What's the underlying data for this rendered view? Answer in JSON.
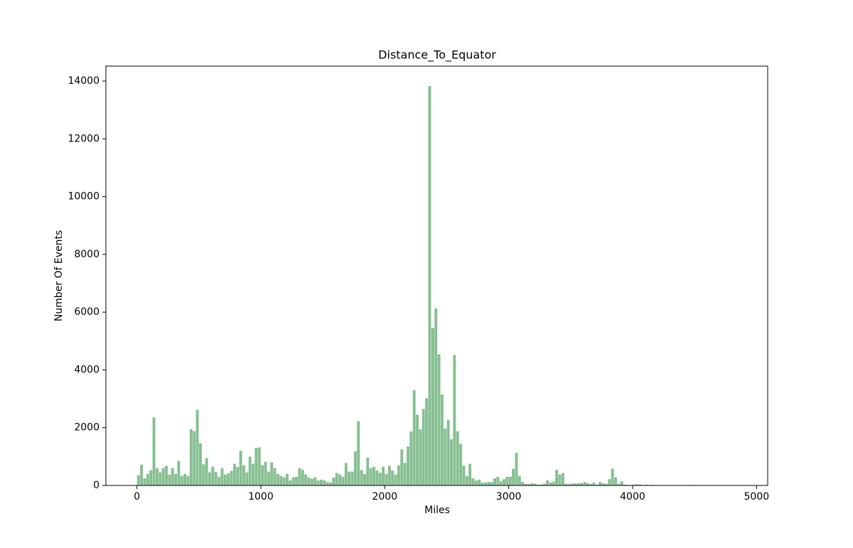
{
  "chart_data": {
    "type": "histogram",
    "title": "Distance_To_Equator",
    "x_label": "Miles",
    "y_label": "Number Of Events",
    "color": "#86bf91",
    "bins": [
      0,
      25,
      50,
      75,
      100,
      125,
      150,
      175,
      200,
      225,
      250,
      275,
      300,
      325,
      350,
      375,
      400,
      425,
      450,
      475,
      500,
      525,
      550,
      575,
      600,
      625,
      650,
      675,
      700,
      725,
      750,
      775,
      800,
      825,
      850,
      875,
      900,
      925,
      950,
      975,
      1000,
      1025,
      1050,
      1075,
      1100,
      1125,
      1150,
      1175,
      1200,
      1225,
      1250,
      1275,
      1300,
      1325,
      1350,
      1375,
      1400,
      1425,
      1450,
      1475,
      1500,
      1525,
      1550,
      1575,
      1600,
      1625,
      1650,
      1675,
      1700,
      1725,
      1750,
      1775,
      1800,
      1825,
      1850,
      1875,
      1900,
      1925,
      1950,
      1975,
      2000,
      2025,
      2050,
      2075,
      2100,
      2125,
      2150,
      2175,
      2200,
      2225,
      2250,
      2275,
      2300,
      2325,
      2350,
      2375,
      2400,
      2425,
      2450,
      2475,
      2500,
      2525,
      2550,
      2575,
      2600,
      2625,
      2650,
      2675,
      2700,
      2725,
      2750,
      2775,
      2800,
      2825,
      2850,
      2875,
      2900,
      2925,
      2950,
      2975,
      3000,
      3025,
      3050,
      3075,
      3100,
      3125,
      3150,
      3175,
      3200,
      3225,
      3250,
      3275,
      3300,
      3325,
      3350,
      3375,
      3400,
      3425,
      3450,
      3475,
      3500,
      3525,
      3550,
      3575,
      3600,
      3625,
      3650,
      3675,
      3700,
      3725,
      3750,
      3775,
      3800,
      3825,
      3850,
      3875,
      3900,
      3925,
      3950,
      3975,
      4000,
      4025,
      4050,
      4075,
      4100,
      4125,
      4150,
      4175,
      4200,
      4225,
      4250,
      4275,
      4300,
      4325,
      4350,
      4375,
      4400,
      4425,
      4450,
      4475,
      4500,
      4525,
      4550,
      4575,
      4600,
      4625,
      4650,
      4675,
      4700,
      4725,
      4750,
      4775,
      4800,
      4825,
      4850,
      4875
    ],
    "counts": [
      350,
      720,
      250,
      400,
      530,
      2350,
      600,
      450,
      600,
      680,
      380,
      600,
      400,
      850,
      330,
      400,
      330,
      1950,
      1880,
      2620,
      1460,
      730,
      950,
      450,
      650,
      470,
      300,
      600,
      380,
      420,
      500,
      750,
      640,
      1200,
      700,
      450,
      1000,
      750,
      1300,
      1320,
      700,
      820,
      480,
      800,
      600,
      400,
      330,
      280,
      400,
      170,
      280,
      300,
      600,
      540,
      380,
      280,
      230,
      280,
      170,
      200,
      180,
      120,
      100,
      270,
      430,
      380,
      300,
      780,
      480,
      480,
      1180,
      2230,
      530,
      400,
      960,
      600,
      650,
      520,
      440,
      650,
      400,
      680,
      520,
      380,
      700,
      1250,
      780,
      1350,
      1870,
      3300,
      2450,
      1950,
      2650,
      3020,
      13830,
      5450,
      6130,
      4540,
      3150,
      1970,
      2270,
      1600,
      4520,
      1880,
      1440,
      680,
      330,
      750,
      250,
      170,
      200,
      100,
      100,
      120,
      120,
      250,
      300,
      150,
      220,
      300,
      300,
      580,
      1130,
      330,
      120,
      60,
      50,
      70,
      60,
      30,
      30,
      60,
      170,
      100,
      130,
      540,
      380,
      430,
      60,
      50,
      70,
      70,
      80,
      80,
      120,
      80,
      50,
      100,
      30,
      120,
      80,
      60,
      220,
      580,
      280,
      60,
      140,
      30,
      20,
      10,
      30,
      40,
      30,
      10,
      30,
      10,
      20,
      10,
      0,
      10,
      0,
      0,
      10,
      0,
      0,
      0,
      0,
      0,
      15,
      0,
      0,
      0,
      0,
      0,
      0,
      0,
      0,
      0,
      0,
      0,
      0,
      0,
      0,
      0,
      5
    ],
    "xlim": [
      -250,
      5090
    ],
    "ylim": [
      0,
      14518
    ],
    "xticks": [
      0,
      1000,
      2000,
      3000,
      4000,
      5000
    ],
    "yticks": [
      0,
      2000,
      4000,
      6000,
      8000,
      10000,
      12000,
      14000
    ]
  }
}
